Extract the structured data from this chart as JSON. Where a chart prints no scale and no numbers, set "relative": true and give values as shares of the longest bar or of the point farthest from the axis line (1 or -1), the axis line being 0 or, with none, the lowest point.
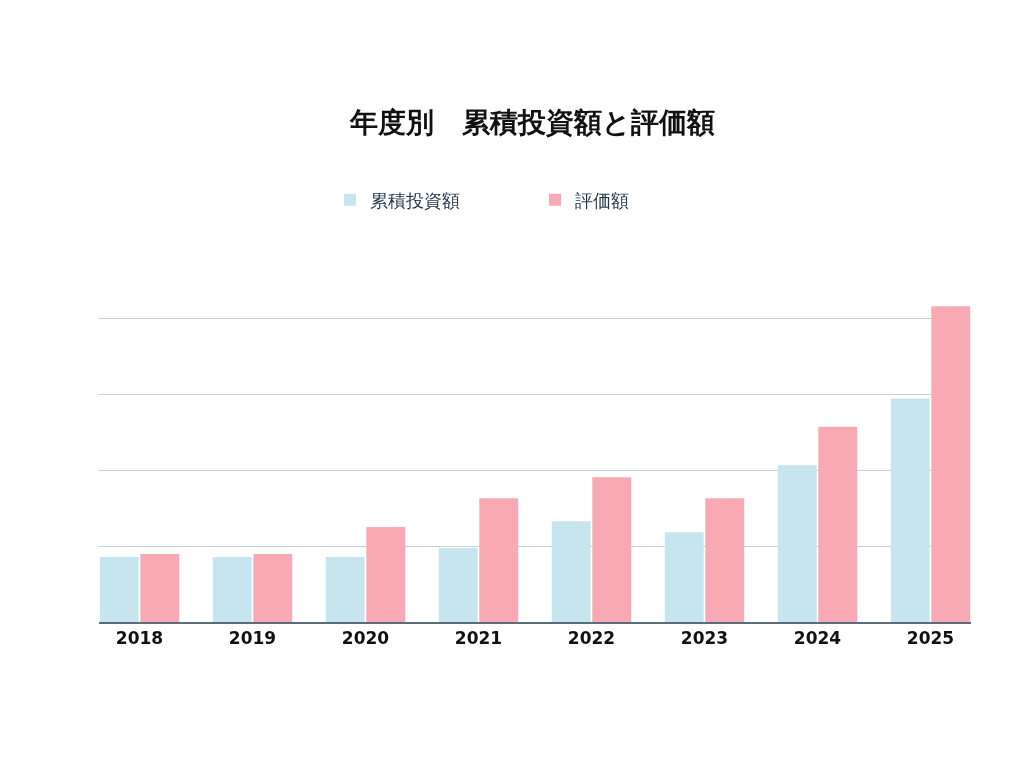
{
  "chart_data": {
    "type": "bar",
    "title": "年度別　累積投資額と評価額",
    "categories": [
      "2018",
      "2019",
      "2020",
      "2021",
      "2022",
      "2023",
      "2024",
      "2025"
    ],
    "relative": true,
    "series": [
      {
        "name": "累積投資額",
        "color": "#c6e5ef",
        "values": [
          0.206,
          0.206,
          0.206,
          0.234,
          0.319,
          0.284,
          0.496,
          0.708
        ]
      },
      {
        "name": "評価額",
        "color": "#f8a9b3",
        "values": [
          0.215,
          0.215,
          0.301,
          0.392,
          0.458,
          0.392,
          0.618,
          1.0
        ]
      }
    ],
    "grid": "y",
    "legend": "top"
  }
}
